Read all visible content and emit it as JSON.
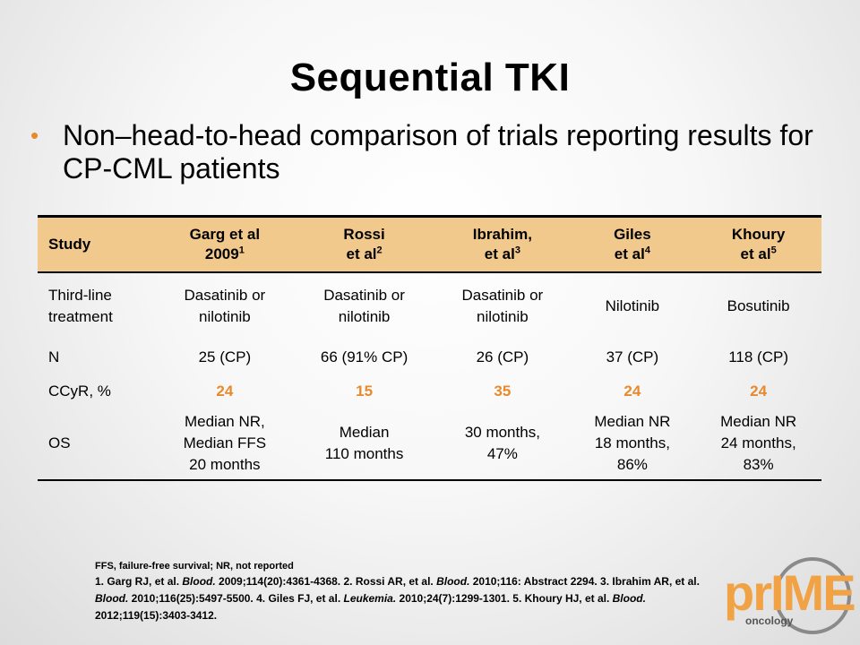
{
  "slide": {
    "title": "Sequential TKI",
    "bullet": "Non–head-to-head comparison of trials reporting results for CP-CML patients"
  },
  "table": {
    "headers": [
      {
        "l1": "Study",
        "l2": "",
        "sup": ""
      },
      {
        "l1": "Garg et al",
        "l2": "2009",
        "sup": "1"
      },
      {
        "l1": "Rossi",
        "l2": "et al",
        "sup": "2"
      },
      {
        "l1": "Ibrahim,",
        "l2": "et al",
        "sup": "3"
      },
      {
        "l1": "Giles",
        "l2": "et al",
        "sup": "4"
      },
      {
        "l1": "Khoury",
        "l2": "et al",
        "sup": "5"
      }
    ],
    "rows": [
      {
        "label_l1": "Third-line",
        "label_l2": "treatment",
        "cells": [
          [
            "Dasatinib or",
            "nilotinib"
          ],
          [
            "Dasatinib or",
            "nilotinib"
          ],
          [
            "Dasatinib or",
            "nilotinib"
          ],
          [
            "Nilotinib"
          ],
          [
            "Bosutinib"
          ]
        ]
      },
      {
        "label_l1": "N",
        "label_l2": "",
        "cells": [
          [
            "25 (CP)"
          ],
          [
            "66 (91% CP)"
          ],
          [
            "26 (CP)"
          ],
          [
            "37 (CP)"
          ],
          [
            "118 (CP)"
          ]
        ]
      },
      {
        "label_l1": "CCyR, %",
        "label_l2": "",
        "cells": [
          [
            "24"
          ],
          [
            "15"
          ],
          [
            "35"
          ],
          [
            "24"
          ],
          [
            "24"
          ]
        ]
      },
      {
        "label_l1": "OS",
        "label_l2": "",
        "cells": [
          [
            "Median NR,",
            "Median FFS",
            "20 months"
          ],
          [
            "Median",
            "110 months"
          ],
          [
            "30 months,",
            "47%"
          ],
          [
            "Median NR",
            "18 months,",
            "86%"
          ],
          [
            "Median NR",
            "24 months,",
            "83%"
          ]
        ]
      }
    ]
  },
  "footnote": {
    "abbreviations": "FFS, failure-free survival; NR, not reported",
    "ref1_a": "1. Garg RJ, et al. ",
    "ref1_j": "Blood.",
    "ref1_b": " 2009;114(20):4361-4368. 2. Rossi AR, et al. ",
    "ref2_j": "Blood.",
    "ref2_b": " 2010;116: Abstract 2294. 3. Ibrahim AR, et al. ",
    "ref3_j": "Blood.",
    "ref3_b": " 2010;116(25):5497-5500. 4. Giles FJ, et al. ",
    "ref4_j": "Leukemia.",
    "ref4_b": " 2010;24(7):1299-1301. 5. Khoury HJ, et al. ",
    "ref5_j": "Blood.",
    "ref5_b": " 2012;119(15):3403-3412."
  },
  "logo": {
    "text": "prIME",
    "sub": "oncology"
  },
  "colors": {
    "accent": "#e8892c",
    "header_bg": "#f2c98d"
  }
}
